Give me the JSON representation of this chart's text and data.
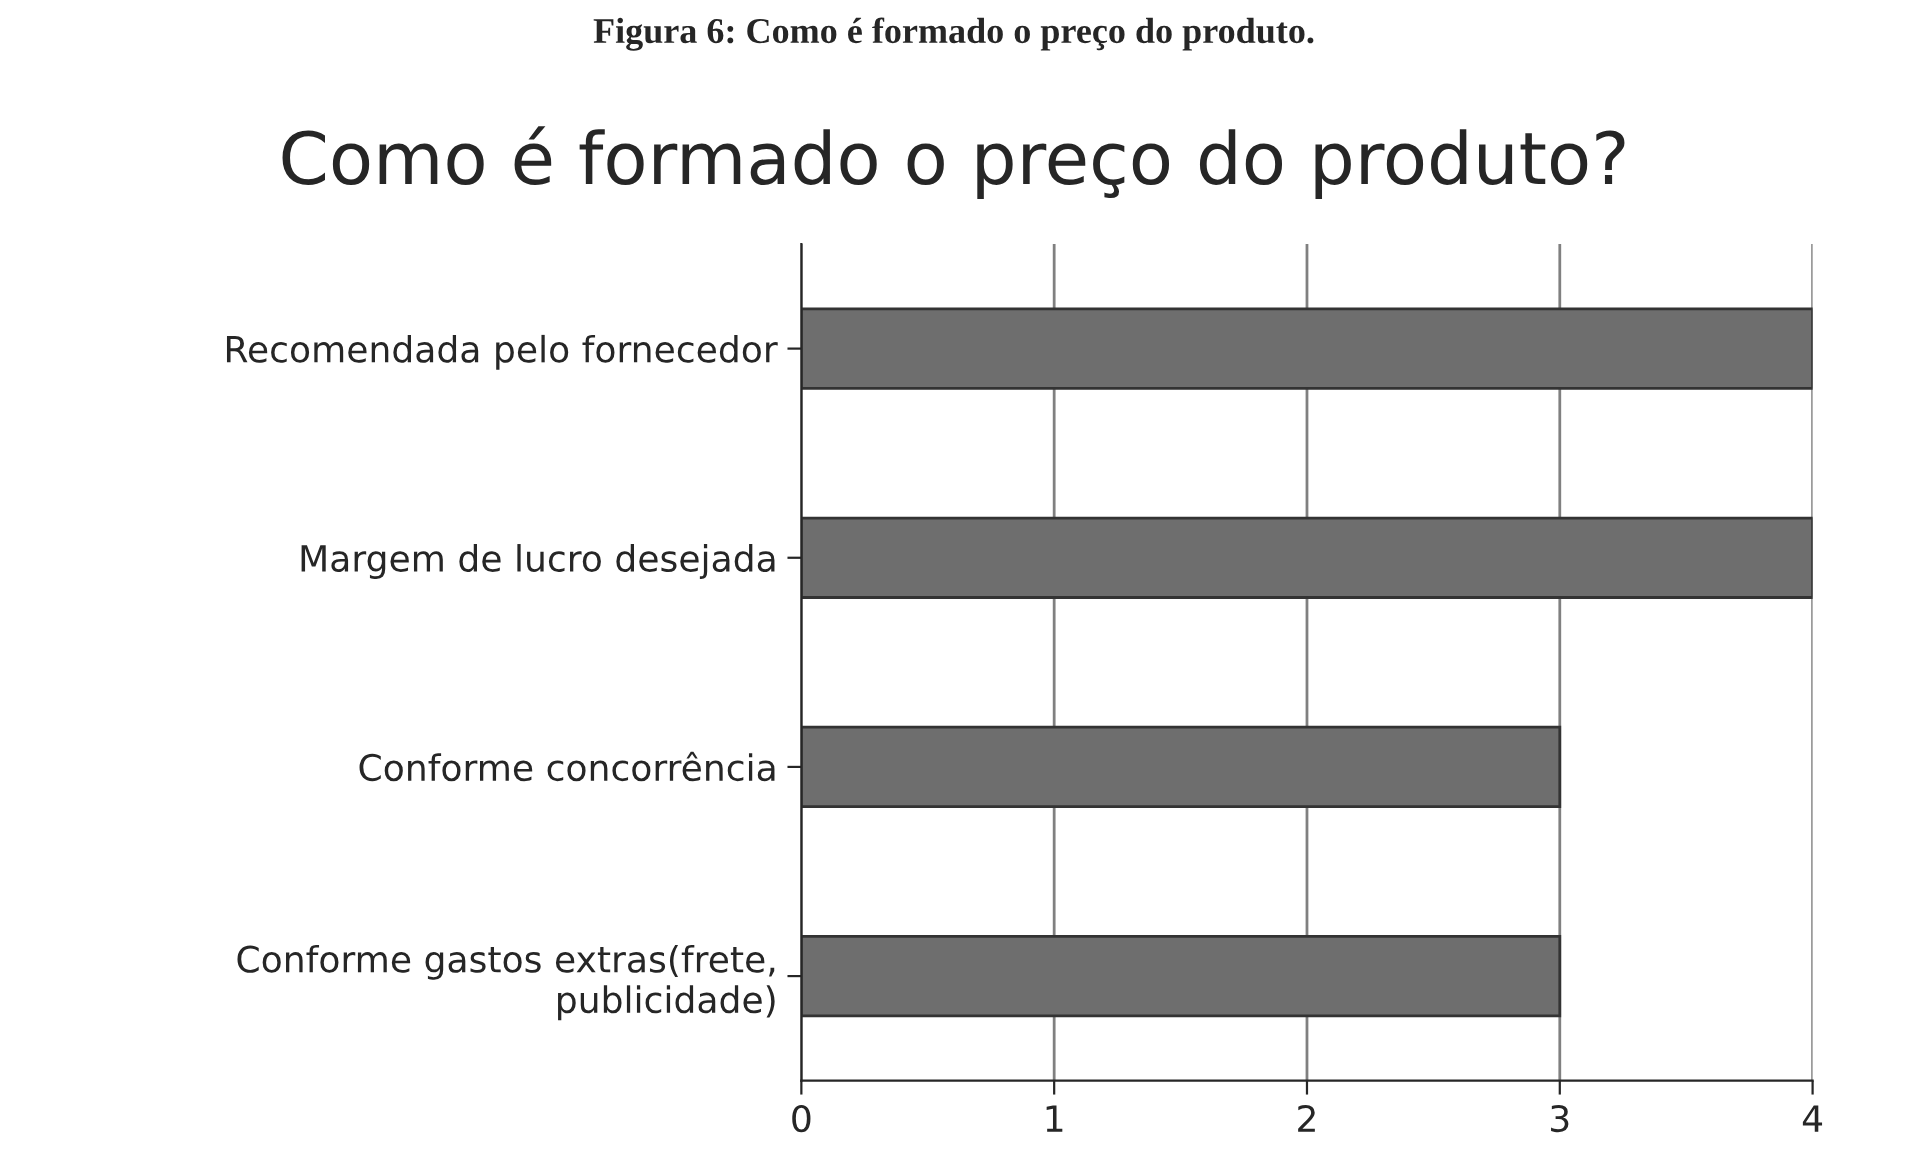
{
  "chart_data": {
    "type": "bar",
    "orientation": "horizontal",
    "title": "Como é formado o preço do produto?",
    "annotations": [
      "Figura 6: Como é formado o preço do produto."
    ],
    "categories": [
      "Recomendada pelo fornecedor",
      "Margem de lucro desejada",
      "Conforme concorrência",
      "Conforme gastos extras(frete, publicidade)"
    ],
    "values": [
      4,
      4,
      3,
      3
    ],
    "color": "#6e6e6e",
    "xlim": [
      0,
      4
    ],
    "xticks": [
      0,
      1,
      2,
      3,
      4
    ],
    "grid": "x",
    "legend": false
  }
}
